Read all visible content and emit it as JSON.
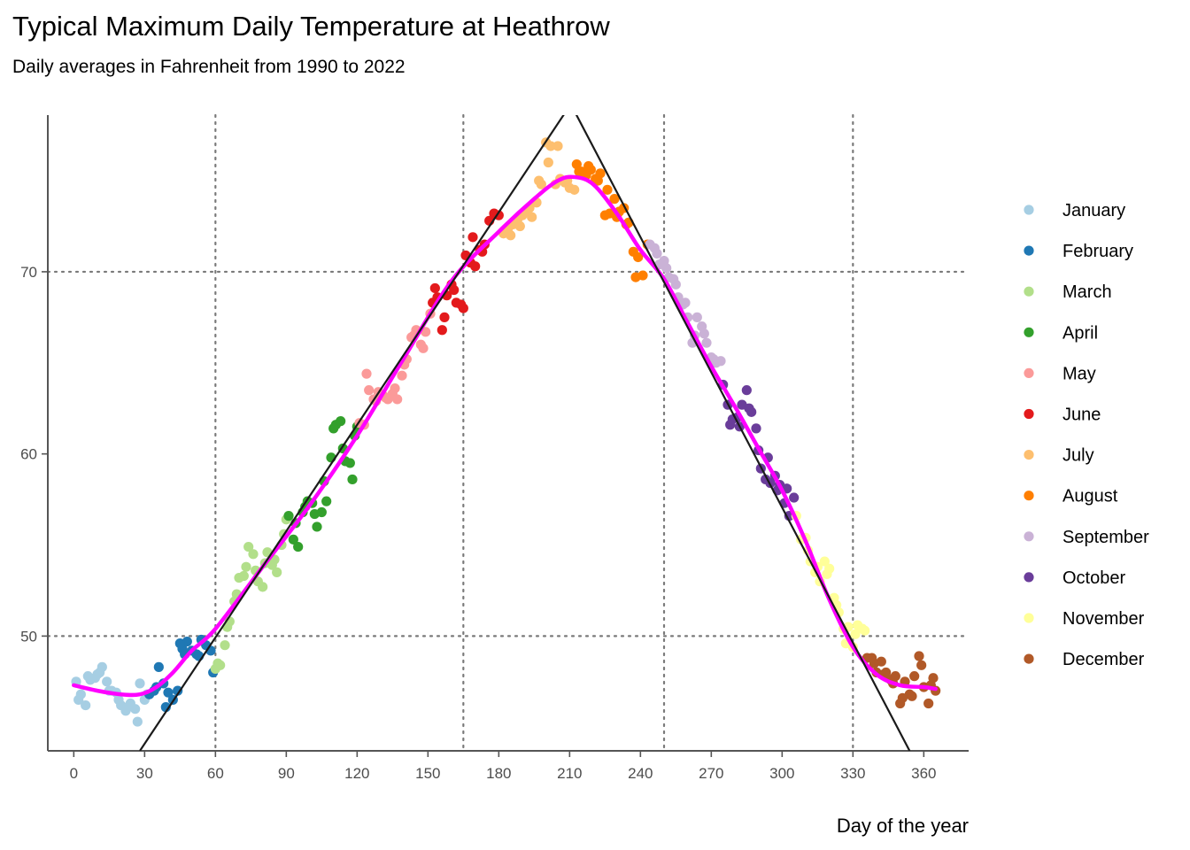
{
  "chart_data": {
    "type": "scatter",
    "title": "Typical Maximum Daily Temperature at Heathrow",
    "subtitle": "Daily averages in Fahrenheit from 1990 to 2022",
    "xlabel": "Day of the year",
    "ylabel": "",
    "xlim": [
      -11,
      379
    ],
    "ylim": [
      43.7,
      78.6
    ],
    "x_ticks": [
      0,
      30,
      60,
      90,
      120,
      150,
      180,
      210,
      240,
      270,
      300,
      330,
      360
    ],
    "y_ticks": [
      50,
      60,
      70
    ],
    "vlines": [
      60,
      165,
      250,
      330
    ],
    "hlines": [
      50,
      70
    ],
    "grid": false,
    "legend_position": "right",
    "reference_lines": [
      {
        "x": [
          28,
          210.5
        ],
        "y": [
          43.7,
          79.2
        ]
      },
      {
        "x": [
          210.5,
          354
        ],
        "y": [
          79.2,
          43.7
        ]
      }
    ],
    "smooth_line": {
      "color": "#ff00ff",
      "x": [
        0,
        10,
        20,
        28,
        35,
        42,
        50,
        60,
        80,
        100,
        120,
        140,
        160,
        180,
        195,
        205,
        212,
        220,
        230,
        240,
        250,
        260,
        270,
        280,
        290,
        300,
        310,
        320,
        330,
        340,
        350,
        360,
        365
      ],
      "y": [
        47.3,
        47.0,
        46.8,
        46.8,
        47.2,
        48.0,
        49.2,
        50.4,
        53.8,
        57.2,
        61.0,
        65.3,
        69.5,
        72.2,
        74.0,
        75.0,
        75.2,
        74.8,
        73.2,
        71.2,
        69.6,
        67.2,
        64.8,
        62.6,
        60.3,
        58.0,
        55.2,
        52.0,
        49.4,
        47.9,
        47.3,
        47.2,
        47.1
      ]
    },
    "series": [
      {
        "name": "January",
        "color": "#a6cee3",
        "x": [
          1,
          3,
          5,
          7,
          9,
          11,
          12,
          14,
          16,
          18,
          20,
          22,
          24,
          26,
          28,
          30,
          31,
          2,
          6,
          10,
          15,
          19,
          23,
          27
        ],
        "y": [
          47.5,
          46.8,
          46.2,
          47.6,
          47.7,
          48.0,
          48.3,
          47.5,
          47.0,
          46.9,
          46.2,
          45.9,
          46.3,
          46.0,
          47.4,
          46.5,
          46.8,
          46.5,
          47.8,
          47.9,
          47.0,
          46.5,
          46.1,
          45.3
        ]
      },
      {
        "name": "February",
        "color": "#1f78b4",
        "x": [
          32,
          34,
          36,
          38,
          40,
          42,
          44,
          46,
          48,
          50,
          52,
          54,
          56,
          58,
          59,
          35,
          39,
          45,
          47,
          53
        ],
        "y": [
          46.8,
          47.0,
          48.3,
          47.4,
          46.9,
          46.5,
          47.0,
          49.3,
          49.7,
          49.2,
          49.0,
          49.8,
          49.5,
          49.2,
          48.0,
          47.2,
          46.1,
          49.6,
          49.0,
          48.9
        ]
      },
      {
        "name": "March",
        "color": "#b2df8a",
        "x": [
          60,
          62,
          64,
          66,
          68,
          70,
          72,
          74,
          76,
          78,
          80,
          82,
          84,
          86,
          88,
          90,
          61,
          65,
          69,
          73,
          77,
          81,
          85,
          89
        ],
        "y": [
          48.2,
          48.4,
          49.5,
          50.8,
          51.9,
          53.2,
          53.3,
          54.9,
          54.5,
          53.0,
          52.7,
          54.6,
          53.9,
          53.5,
          55.0,
          56.4,
          48.5,
          50.5,
          52.3,
          53.8,
          53.6,
          54.0,
          54.2,
          55.6
        ]
      },
      {
        "name": "April",
        "color": "#33a02c",
        "x": [
          91,
          93,
          95,
          97,
          99,
          101,
          103,
          105,
          107,
          109,
          111,
          113,
          115,
          117,
          119,
          120,
          94,
          98,
          102,
          106,
          110,
          114,
          118
        ],
        "y": [
          56.6,
          55.3,
          54.9,
          56.8,
          57.4,
          57.3,
          56.0,
          56.8,
          57.4,
          59.8,
          61.6,
          61.8,
          59.6,
          59.5,
          61.0,
          61.5,
          56.2,
          57.1,
          56.7,
          58.5,
          61.4,
          60.3,
          58.6
        ]
      },
      {
        "name": "May",
        "color": "#fb9a99",
        "x": [
          121,
          123,
          125,
          127,
          129,
          131,
          133,
          135,
          137,
          139,
          141,
          143,
          145,
          147,
          149,
          151,
          124,
          128,
          132,
          136,
          140,
          144,
          148
        ],
        "y": [
          61.7,
          61.6,
          63.5,
          63.0,
          63.4,
          63.2,
          63.0,
          63.3,
          63.0,
          64.3,
          65.2,
          66.4,
          66.8,
          66.0,
          66.7,
          67.7,
          64.4,
          62.9,
          63.1,
          63.6,
          64.9,
          66.5,
          65.8
        ]
      },
      {
        "name": "June",
        "color": "#e31a1c",
        "x": [
          152,
          154,
          156,
          158,
          160,
          162,
          164,
          166,
          168,
          170,
          172,
          174,
          176,
          178,
          180,
          153,
          157,
          161,
          165,
          169,
          173
        ],
        "y": [
          68.3,
          68.6,
          66.8,
          68.7,
          69.3,
          68.3,
          68.2,
          70.9,
          70.5,
          70.3,
          71.2,
          71.5,
          72.8,
          73.2,
          73.1,
          69.1,
          67.5,
          69.0,
          68.0,
          71.9,
          71.1
        ]
      },
      {
        "name": "July",
        "color": "#fdbf6f",
        "x": [
          182,
          184,
          186,
          188,
          190,
          192,
          194,
          196,
          198,
          200,
          202,
          204,
          206,
          208,
          210,
          212,
          185,
          189,
          193,
          197,
          201,
          205,
          209
        ],
        "y": [
          72.1,
          72.4,
          72.6,
          72.9,
          73.1,
          73.3,
          73.0,
          73.8,
          74.8,
          77.1,
          76.9,
          74.8,
          75.1,
          74.9,
          74.6,
          74.5,
          72.0,
          72.5,
          73.5,
          75.0,
          76.0,
          76.9,
          75.0
        ]
      },
      {
        "name": "August",
        "color": "#ff7f00",
        "x": [
          213,
          215,
          217,
          219,
          221,
          223,
          225,
          227,
          229,
          231,
          233,
          235,
          237,
          239,
          241,
          243,
          214,
          218,
          222,
          226,
          230,
          234,
          238
        ],
        "y": [
          75.9,
          75.5,
          75.3,
          75.6,
          75.1,
          75.4,
          73.1,
          73.2,
          74.0,
          73.3,
          73.5,
          72.7,
          71.1,
          70.8,
          69.8,
          71.5,
          75.5,
          75.8,
          75.0,
          74.5,
          73.0,
          72.6,
          69.7
        ]
      },
      {
        "name": "September",
        "color": "#cab2d6",
        "x": [
          244,
          246,
          248,
          250,
          252,
          254,
          256,
          258,
          260,
          262,
          264,
          266,
          268,
          270,
          272,
          274,
          247,
          251,
          255,
          259,
          263,
          267,
          271
        ],
        "y": [
          71.5,
          71.3,
          70.4,
          70.6,
          69.7,
          69.6,
          68.6,
          68.2,
          67.5,
          66.1,
          67.5,
          67.0,
          66.1,
          65.3,
          65.0,
          65.1,
          71.0,
          70.2,
          69.3,
          68.3,
          66.5,
          66.6,
          65.2
        ]
      },
      {
        "name": "October",
        "color": "#6a3d9a",
        "x": [
          275,
          277,
          279,
          281,
          283,
          285,
          287,
          289,
          291,
          293,
          295,
          297,
          299,
          301,
          303,
          305,
          278,
          282,
          286,
          290,
          294,
          298,
          302
        ],
        "y": [
          63.8,
          62.7,
          61.9,
          62.0,
          62.7,
          63.5,
          62.3,
          61.4,
          59.2,
          58.6,
          58.4,
          58.8,
          58.3,
          57.3,
          56.6,
          57.6,
          61.6,
          61.5,
          62.5,
          60.2,
          59.8,
          58.0,
          58.1
        ]
      },
      {
        "name": "November",
        "color": "#ffff99",
        "x": [
          306,
          308,
          310,
          312,
          314,
          316,
          318,
          320,
          322,
          324,
          326,
          328,
          330,
          332,
          334,
          335,
          311,
          315,
          319,
          323,
          327,
          331
        ],
        "y": [
          56.6,
          55.3,
          55.4,
          54.1,
          53.5,
          53.0,
          54.1,
          53.7,
          52.1,
          51.3,
          50.4,
          50.5,
          49.4,
          50.6,
          50.4,
          50.3,
          54.7,
          53.8,
          53.4,
          51.7,
          49.6,
          50.1
        ]
      },
      {
        "name": "December",
        "color": "#b15928",
        "x": [
          336,
          338,
          340,
          342,
          344,
          346,
          348,
          350,
          352,
          354,
          356,
          358,
          360,
          362,
          364,
          365,
          339,
          343,
          347,
          351,
          355,
          359,
          363
        ],
        "y": [
          48.8,
          48.8,
          48.0,
          48.6,
          48.0,
          47.6,
          47.8,
          46.3,
          47.5,
          46.8,
          47.8,
          48.9,
          47.2,
          46.3,
          47.7,
          47.0,
          48.5,
          47.9,
          47.4,
          46.6,
          46.7,
          48.4,
          47.3
        ]
      }
    ]
  }
}
